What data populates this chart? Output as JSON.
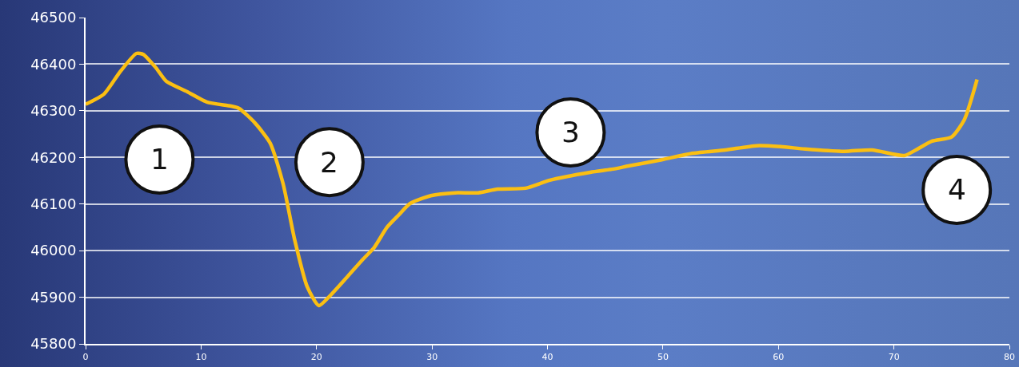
{
  "chart_data": {
    "type": "line",
    "x": [
      0,
      1.6,
      3,
      4.4,
      5,
      6.1,
      7,
      8.8,
      10.5,
      12.6,
      13.3,
      14.7,
      16,
      17.1,
      18.1,
      19.2,
      20.2,
      21.2,
      22.6,
      24,
      25,
      26.1,
      27.1,
      28.1,
      29.9,
      32,
      34,
      35.7,
      38.1,
      40.2,
      43.7,
      45.7,
      47.1,
      49.9,
      52.6,
      55.4,
      58.1,
      60.2,
      62.3,
      65.7,
      68.1,
      70.9,
      71.9,
      73.3,
      75,
      76.1,
      77.2
    ],
    "series": [
      {
        "color": "#fbbf12",
        "values": [
          46314,
          46336,
          46384,
          46423,
          46421,
          46392,
          46363,
          46341,
          46319,
          46310,
          46305,
          46273,
          46230,
          46144,
          46024,
          45922,
          45882,
          45904,
          45942,
          45981,
          46007,
          46050,
          46076,
          46101,
          46118,
          46124,
          46124,
          46132,
          46134,
          46151,
          46168,
          46175,
          46182,
          46195,
          46209,
          46216,
          46225,
          46223,
          46218,
          46213,
          46216,
          46204,
          46216,
          46235,
          46244,
          46281,
          46367
        ]
      }
    ],
    "xlim": [
      0,
      80
    ],
    "xticks": [
      0,
      10,
      20,
      30,
      40,
      50,
      60,
      70,
      80
    ],
    "ylim": [
      45800,
      46500
    ],
    "yticks": [
      45800,
      45900,
      46000,
      46100,
      46200,
      46300,
      46400,
      46500
    ],
    "grid": "y",
    "marker": "none",
    "line_style": "solid",
    "annotations": [
      "1",
      "2",
      "3",
      "4"
    ]
  }
}
